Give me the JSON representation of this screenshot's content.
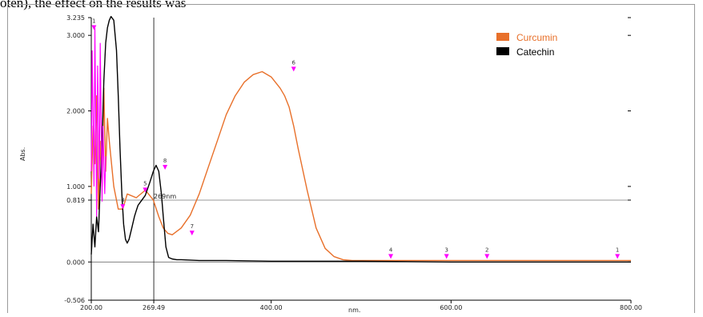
{
  "caption": "oten), the effect on the results was",
  "colors": {
    "curcumin": "#e8702a",
    "catechin": "#000000",
    "markers": "#ff00ff",
    "axis": "#000000"
  },
  "chart_data": {
    "type": "line",
    "title": "",
    "xlabel": "nm.",
    "ylabel": "Abs.",
    "xlim": [
      200,
      800
    ],
    "ylim": [
      -0.506,
      3.235
    ],
    "x_ticks": [
      {
        "value": 200,
        "label": "200.00"
      },
      {
        "value": 269.49,
        "label": "269.49"
      },
      {
        "value": 400,
        "label": "400.00"
      },
      {
        "value": 600,
        "label": "600.00"
      },
      {
        "value": 800,
        "label": "800.00"
      }
    ],
    "y_ticks": [
      {
        "value": 3.235,
        "label": "3.235"
      },
      {
        "value": 3.0,
        "label": "3.000"
      },
      {
        "value": 2.0,
        "label": "2.000"
      },
      {
        "value": 1.0,
        "label": "1.000"
      },
      {
        "value": 0.819,
        "label": "0.819"
      },
      {
        "value": 0.0,
        "label": "0.000"
      },
      {
        "value": -0.506,
        "label": "-0.506"
      }
    ],
    "cursor": {
      "x": 269.49,
      "y": 0.819,
      "label": "269nm"
    },
    "legend": {
      "position": "top-right"
    },
    "series": [
      {
        "name": "Curcumin",
        "color": "#e8702a",
        "x": [
          200,
          202,
          204,
          206,
          208,
          210,
          212,
          214,
          216,
          218,
          220,
          225,
          230,
          235,
          240,
          250,
          260,
          265,
          269,
          275,
          280,
          285,
          290,
          300,
          310,
          320,
          330,
          340,
          350,
          360,
          370,
          380,
          390,
          400,
          410,
          415,
          420,
          425,
          430,
          440,
          450,
          460,
          470,
          480,
          490,
          500,
          520,
          550,
          600,
          650,
          700,
          750,
          800
        ],
        "y": [
          0.9,
          1.8,
          1.3,
          2.2,
          0.7,
          1.6,
          1.0,
          2.3,
          1.2,
          1.9,
          1.6,
          1.0,
          0.7,
          0.7,
          0.9,
          0.85,
          0.95,
          0.88,
          0.82,
          0.6,
          0.45,
          0.38,
          0.36,
          0.45,
          0.62,
          0.9,
          1.25,
          1.6,
          1.95,
          2.2,
          2.38,
          2.48,
          2.52,
          2.45,
          2.3,
          2.2,
          2.05,
          1.8,
          1.5,
          0.95,
          0.45,
          0.18,
          0.07,
          0.03,
          0.02,
          0.02,
          0.02,
          0.02,
          0.02,
          0.02,
          0.02,
          0.02,
          0.02
        ]
      },
      {
        "name": "Catechin",
        "color": "#000000",
        "x": [
          200,
          202,
          204,
          206,
          208,
          210,
          212,
          214,
          216,
          218,
          220,
          222,
          225,
          228,
          230,
          232,
          234,
          236,
          238,
          240,
          242,
          245,
          248,
          250,
          252,
          255,
          260,
          265,
          269,
          272,
          275,
          278,
          280,
          283,
          286,
          290,
          295,
          300,
          320,
          350,
          400,
          450,
          500,
          600,
          700,
          800
        ],
        "y": [
          0.1,
          0.5,
          0.2,
          0.6,
          0.4,
          1.0,
          1.6,
          2.4,
          2.9,
          3.1,
          3.2,
          3.25,
          3.2,
          2.8,
          2.2,
          1.5,
          0.9,
          0.5,
          0.3,
          0.25,
          0.3,
          0.45,
          0.6,
          0.68,
          0.75,
          0.8,
          0.88,
          1.05,
          1.2,
          1.28,
          1.2,
          0.9,
          0.6,
          0.2,
          0.06,
          0.04,
          0.03,
          0.03,
          0.02,
          0.02,
          0.01,
          0.01,
          0.01,
          0.0,
          0.0,
          0.0
        ]
      }
    ],
    "peak_labels": [
      {
        "x": 203,
        "y": 3.05,
        "label": "1"
      },
      {
        "x": 235,
        "y": 0.68,
        "label": "3"
      },
      {
        "x": 260,
        "y": 0.9,
        "label": "5"
      },
      {
        "x": 282,
        "y": 1.2,
        "label": "8"
      },
      {
        "x": 312,
        "y": 0.33,
        "label": "7"
      },
      {
        "x": 425,
        "y": 2.5,
        "label": "6"
      },
      {
        "x": 533,
        "y": 0.02,
        "label": "4"
      },
      {
        "x": 595,
        "y": 0.02,
        "label": "3"
      },
      {
        "x": 640,
        "y": 0.02,
        "label": "2"
      },
      {
        "x": 785,
        "y": 0.02,
        "label": "1"
      }
    ]
  }
}
